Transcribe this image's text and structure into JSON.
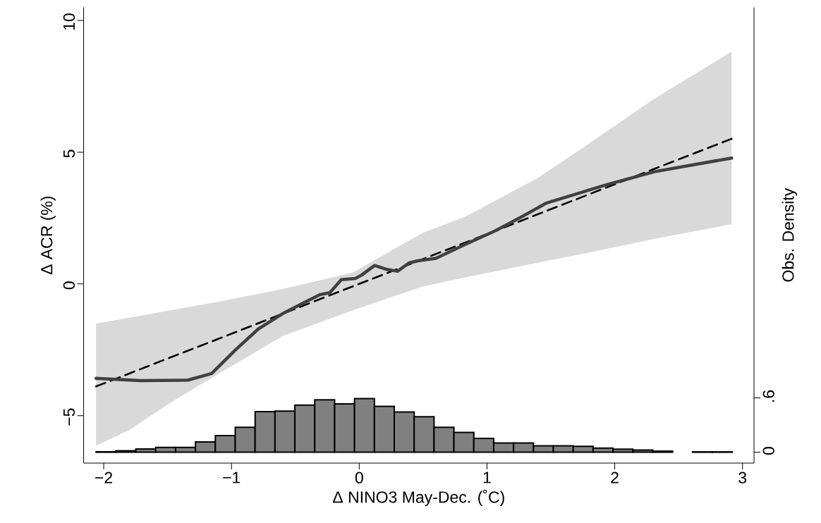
{
  "chart_data": {
    "type": "line",
    "xlabel": "Δ NINO3 May-Dec. (˚C)",
    "ylabel": "Δ ACR (%)",
    "y2label": "Obs. Density",
    "xlim": [
      -2.157,
      3.09
    ],
    "ylim": [
      -6.8,
      10.5
    ],
    "y2lim": [
      -0.12,
      4.91
    ],
    "xticks": [
      {
        "value": -2,
        "label": "−2"
      },
      {
        "value": -1,
        "label": "−1"
      },
      0,
      1,
      2,
      3
    ],
    "yticks": [
      {
        "value": -5,
        "label": "−5"
      },
      0,
      5,
      10
    ],
    "y2ticks": [
      0,
      {
        "value": 0.6,
        "label": ".6"
      }
    ],
    "series": [
      {
        "color": "#000000",
        "line_style": "dashed",
        "x": [
          -2.06,
          -1.8,
          -1.5,
          -1.1,
          -0.6,
          -0.05,
          0.28,
          0.5,
          0.83,
          1.39,
          1.76,
          2.3,
          2.915
        ],
        "values": [
          -3.89,
          -3.4,
          -2.83,
          -2.08,
          -1.13,
          -0.09,
          0.53,
          0.95,
          1.57,
          2.63,
          3.33,
          4.35,
          5.51
        ],
        "lower": [
          -6.14,
          -5.54,
          -4.57,
          -3.41,
          -1.98,
          -1.0,
          -0.45,
          -0.1,
          0.25,
          0.8,
          1.15,
          1.7,
          2.27
        ],
        "upper": [
          -1.5,
          -1.28,
          -1.02,
          -0.67,
          -0.19,
          0.43,
          1.35,
          1.94,
          2.56,
          4.0,
          5.2,
          7.0,
          8.82
        ]
      },
      {
        "color": "#404040",
        "line_style": "solid",
        "x": [
          -2.06,
          -1.71,
          -1.34,
          -1.155,
          -0.97,
          -0.79,
          -0.6,
          -0.42,
          -0.31,
          -0.23,
          -0.14,
          -0.03,
          0.02,
          0.12,
          0.21,
          0.3,
          0.39,
          0.46,
          0.6,
          0.83,
          1.07,
          1.28,
          1.46,
          1.94,
          2.31,
          2.67,
          2.915
        ],
        "values": [
          -3.58,
          -3.67,
          -3.65,
          -3.4,
          -2.51,
          -1.71,
          -1.13,
          -0.68,
          -0.41,
          -0.33,
          0.16,
          0.21,
          0.34,
          0.7,
          0.56,
          0.48,
          0.8,
          0.88,
          0.97,
          1.5,
          2.03,
          2.57,
          3.06,
          3.77,
          4.26,
          4.57,
          4.78
        ]
      },
      {
        "type": "histogram",
        "axis": "y2",
        "color": "#808080",
        "bins": [
          -2.06,
          -1.9044,
          -1.7488,
          -1.5931,
          -1.4375,
          -1.2819,
          -1.1262,
          -0.9706,
          -0.815,
          -0.6594,
          -0.5037,
          -0.3481,
          -0.1925,
          -0.0369,
          0.1188,
          0.2744,
          0.43,
          0.5856,
          0.7413,
          0.8969,
          1.0525,
          1.2081,
          1.3638,
          1.5194,
          1.675,
          1.8306,
          1.9863,
          2.1419,
          2.2975,
          2.4531,
          2.6088,
          2.7644,
          2.92
        ],
        "values": [
          0.005,
          0.016,
          0.036,
          0.053,
          0.053,
          0.114,
          0.183,
          0.275,
          0.447,
          0.453,
          0.52,
          0.578,
          0.533,
          0.591,
          0.506,
          0.444,
          0.391,
          0.275,
          0.219,
          0.152,
          0.102,
          0.102,
          0.071,
          0.071,
          0.065,
          0.046,
          0.034,
          0.023,
          0.012,
          null,
          0.004,
          0.004
        ]
      }
    ]
  }
}
